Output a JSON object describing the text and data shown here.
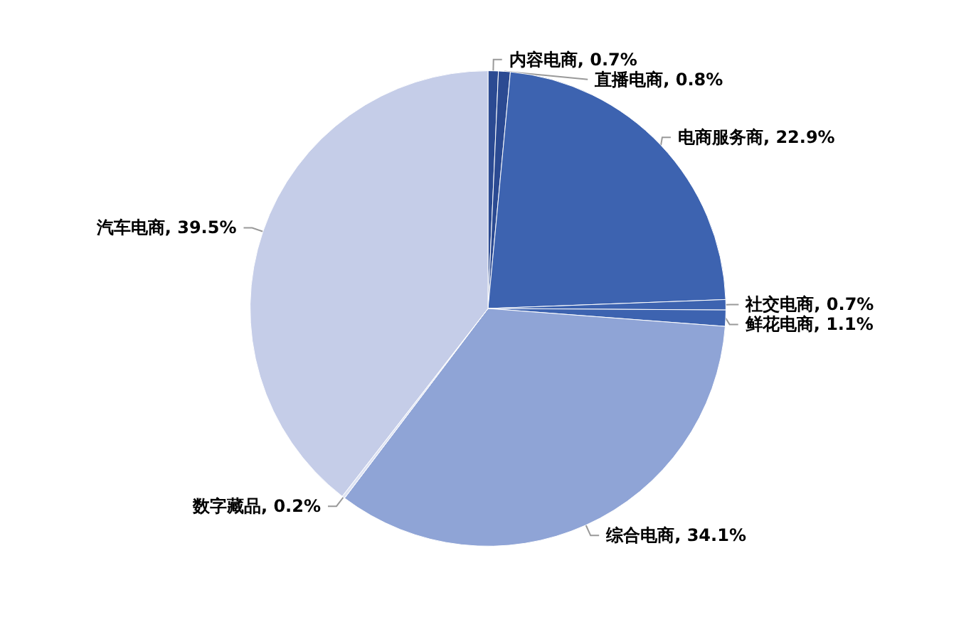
{
  "chart_data": {
    "type": "pie",
    "categories": [
      "内容电商",
      "直播电商",
      "电商服务商",
      "社交电商",
      "鲜花电商",
      "综合电商",
      "数字藏品",
      "汽车电商"
    ],
    "values": [
      0.7,
      0.8,
      22.9,
      0.7,
      1.1,
      34.1,
      0.2,
      39.5
    ],
    "value_labels": [
      "0.7%",
      "0.8%",
      "22.9%",
      "0.7%",
      "1.1%",
      "34.1%",
      "0.2%",
      "39.5%"
    ],
    "colors": [
      "#2b4a92",
      "#2b4a92",
      "#3d63b0",
      "#3d63b0",
      "#3d63b0",
      "#8fa4d6",
      "#dfe4f3",
      "#c5cde8"
    ],
    "legend": false
  }
}
